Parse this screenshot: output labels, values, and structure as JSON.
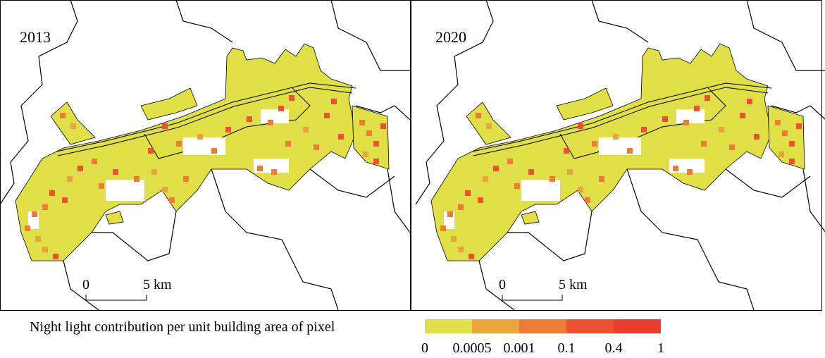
{
  "panels": [
    {
      "label": "2013",
      "scale_bar": {
        "start": "0",
        "end": "5 km"
      }
    },
    {
      "label": "2020",
      "scale_bar": {
        "start": "0",
        "end": "5 km"
      }
    }
  ],
  "legend": {
    "title": "Night light contribution per unit building area of pixel",
    "colors": [
      "#e1df48",
      "#e9a43e",
      "#ec7c37",
      "#ea5233",
      "#e83c2f"
    ],
    "breaks": [
      "0",
      "0.0005",
      "0.001",
      "0.1",
      "0.4",
      "1"
    ]
  }
}
